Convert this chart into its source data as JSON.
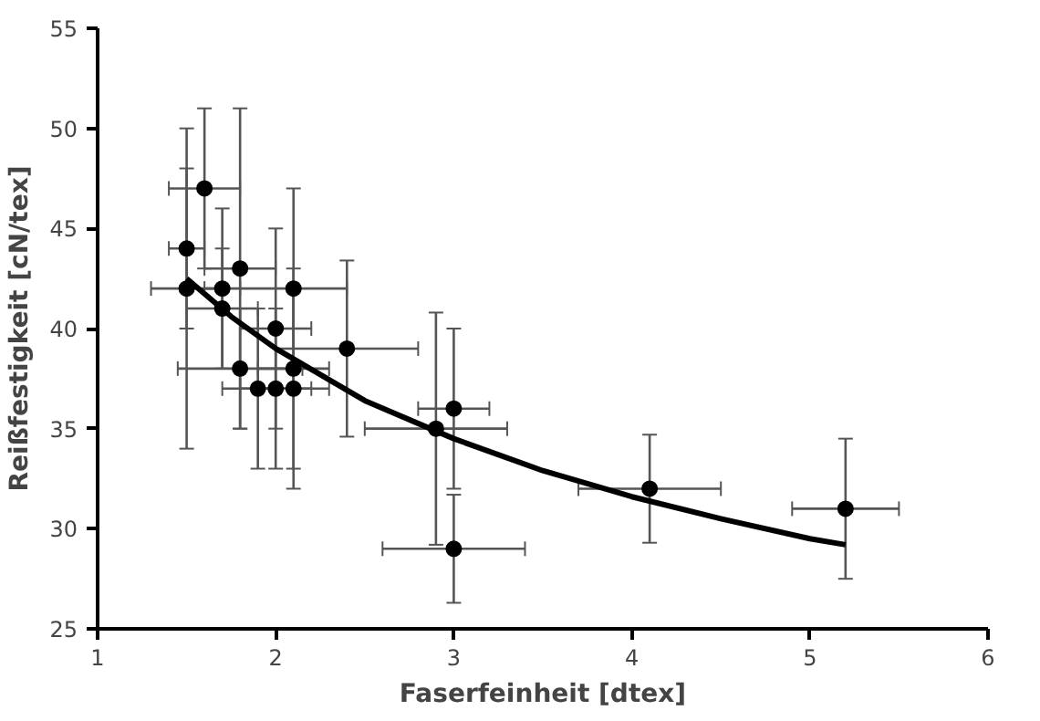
{
  "chart_data": {
    "type": "scatter",
    "xlabel": "Faserfeinheit [dtex]",
    "ylabel": "Reißfestigkeit [cN/tex]",
    "xlim": [
      1,
      6
    ],
    "xticks": [
      1,
      2,
      3,
      4,
      5,
      6
    ],
    "ylim": [
      25,
      55
    ],
    "yticks": [
      25,
      30,
      35,
      40,
      45,
      50,
      55
    ],
    "grid": false,
    "marker": "circle",
    "series": [
      {
        "color": "#000000",
        "x": [
          1.5,
          1.5,
          1.6,
          1.7,
          1.7,
          1.8,
          1.8,
          1.9,
          2.0,
          2.0,
          2.1,
          2.1,
          2.1,
          2.4,
          2.9,
          3.0,
          3.0,
          4.1,
          5.2
        ],
        "values": [
          44,
          42,
          47,
          42,
          41,
          43,
          38,
          37,
          40,
          37,
          42,
          38,
          37,
          39,
          35,
          36,
          29,
          32,
          31
        ],
        "errors": [
          4,
          8,
          4,
          4,
          3,
          8,
          3,
          4,
          5,
          4,
          5,
          5,
          5,
          4.4,
          5.8,
          4,
          2.7,
          2.7,
          3.5
        ],
        "xerrors": [
          0.1,
          0.2,
          0.2,
          0.1,
          0.2,
          0.2,
          0.35,
          0.2,
          0.2,
          0.2,
          0.3,
          0.2,
          0.2,
          0.4,
          0.4,
          0.2,
          0.4,
          0.4,
          0.3
        ]
      },
      {
        "type": "line",
        "color": "#000000",
        "marker": "none",
        "x": [
          1.5,
          1.75,
          2,
          2.5,
          3,
          3.5,
          4,
          4.5,
          5,
          5.2
        ],
        "values": [
          42.5,
          40.6,
          39.0,
          36.4,
          34.5,
          32.9,
          31.6,
          30.5,
          29.5,
          29.2
        ]
      }
    ]
  }
}
